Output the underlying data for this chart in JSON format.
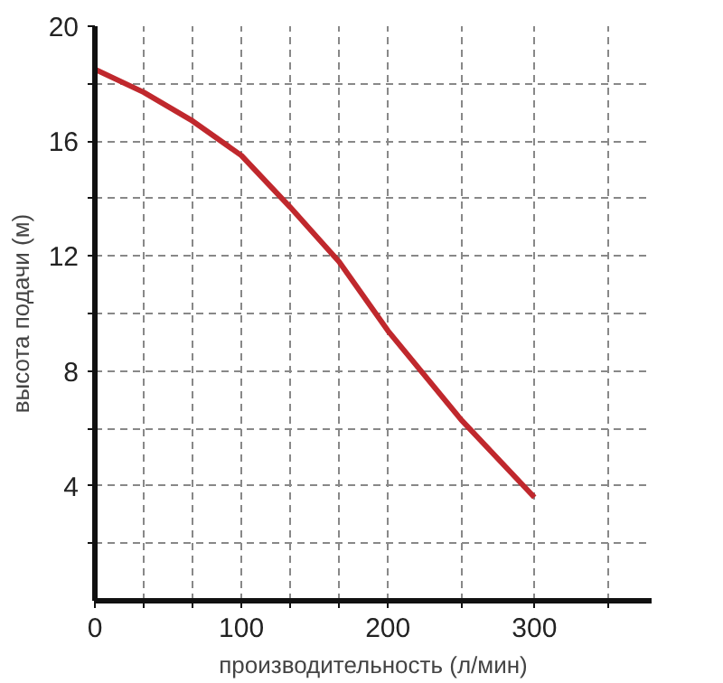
{
  "chart_data": {
    "type": "line",
    "xlabel": "производительность (л/мин)",
    "ylabel": "высота подачи (м)",
    "x": [
      0,
      33.3,
      66.7,
      100,
      133.3,
      166.7,
      200,
      250,
      300
    ],
    "series": [
      {
        "color": "#c0282d",
        "values": [
          18.5,
          17.7,
          16.7,
          15.5,
          13.7,
          11.8,
          9.4,
          6.3,
          3.6
        ]
      }
    ],
    "xlim": [
      0,
      380
    ],
    "ylim": [
      0,
      20
    ],
    "xticks": [
      0,
      {
        "value": 33.3,
        "label": null
      },
      {
        "value": 66.7,
        "label": null
      },
      100,
      {
        "value": 133.3,
        "label": null
      },
      {
        "value": 166.7,
        "label": null
      },
      200,
      {
        "value": 250,
        "label": null
      },
      300,
      {
        "value": 350,
        "label": null
      }
    ],
    "yticks": [
      {
        "value": 2,
        "label": null
      },
      4,
      {
        "value": 6,
        "label": null
      },
      8,
      {
        "value": 10,
        "label": null
      },
      12,
      {
        "value": 14,
        "label": null
      },
      16,
      {
        "value": 18,
        "label": null
      },
      20
    ],
    "grid": true,
    "marker": "none",
    "line_style": "solid"
  }
}
